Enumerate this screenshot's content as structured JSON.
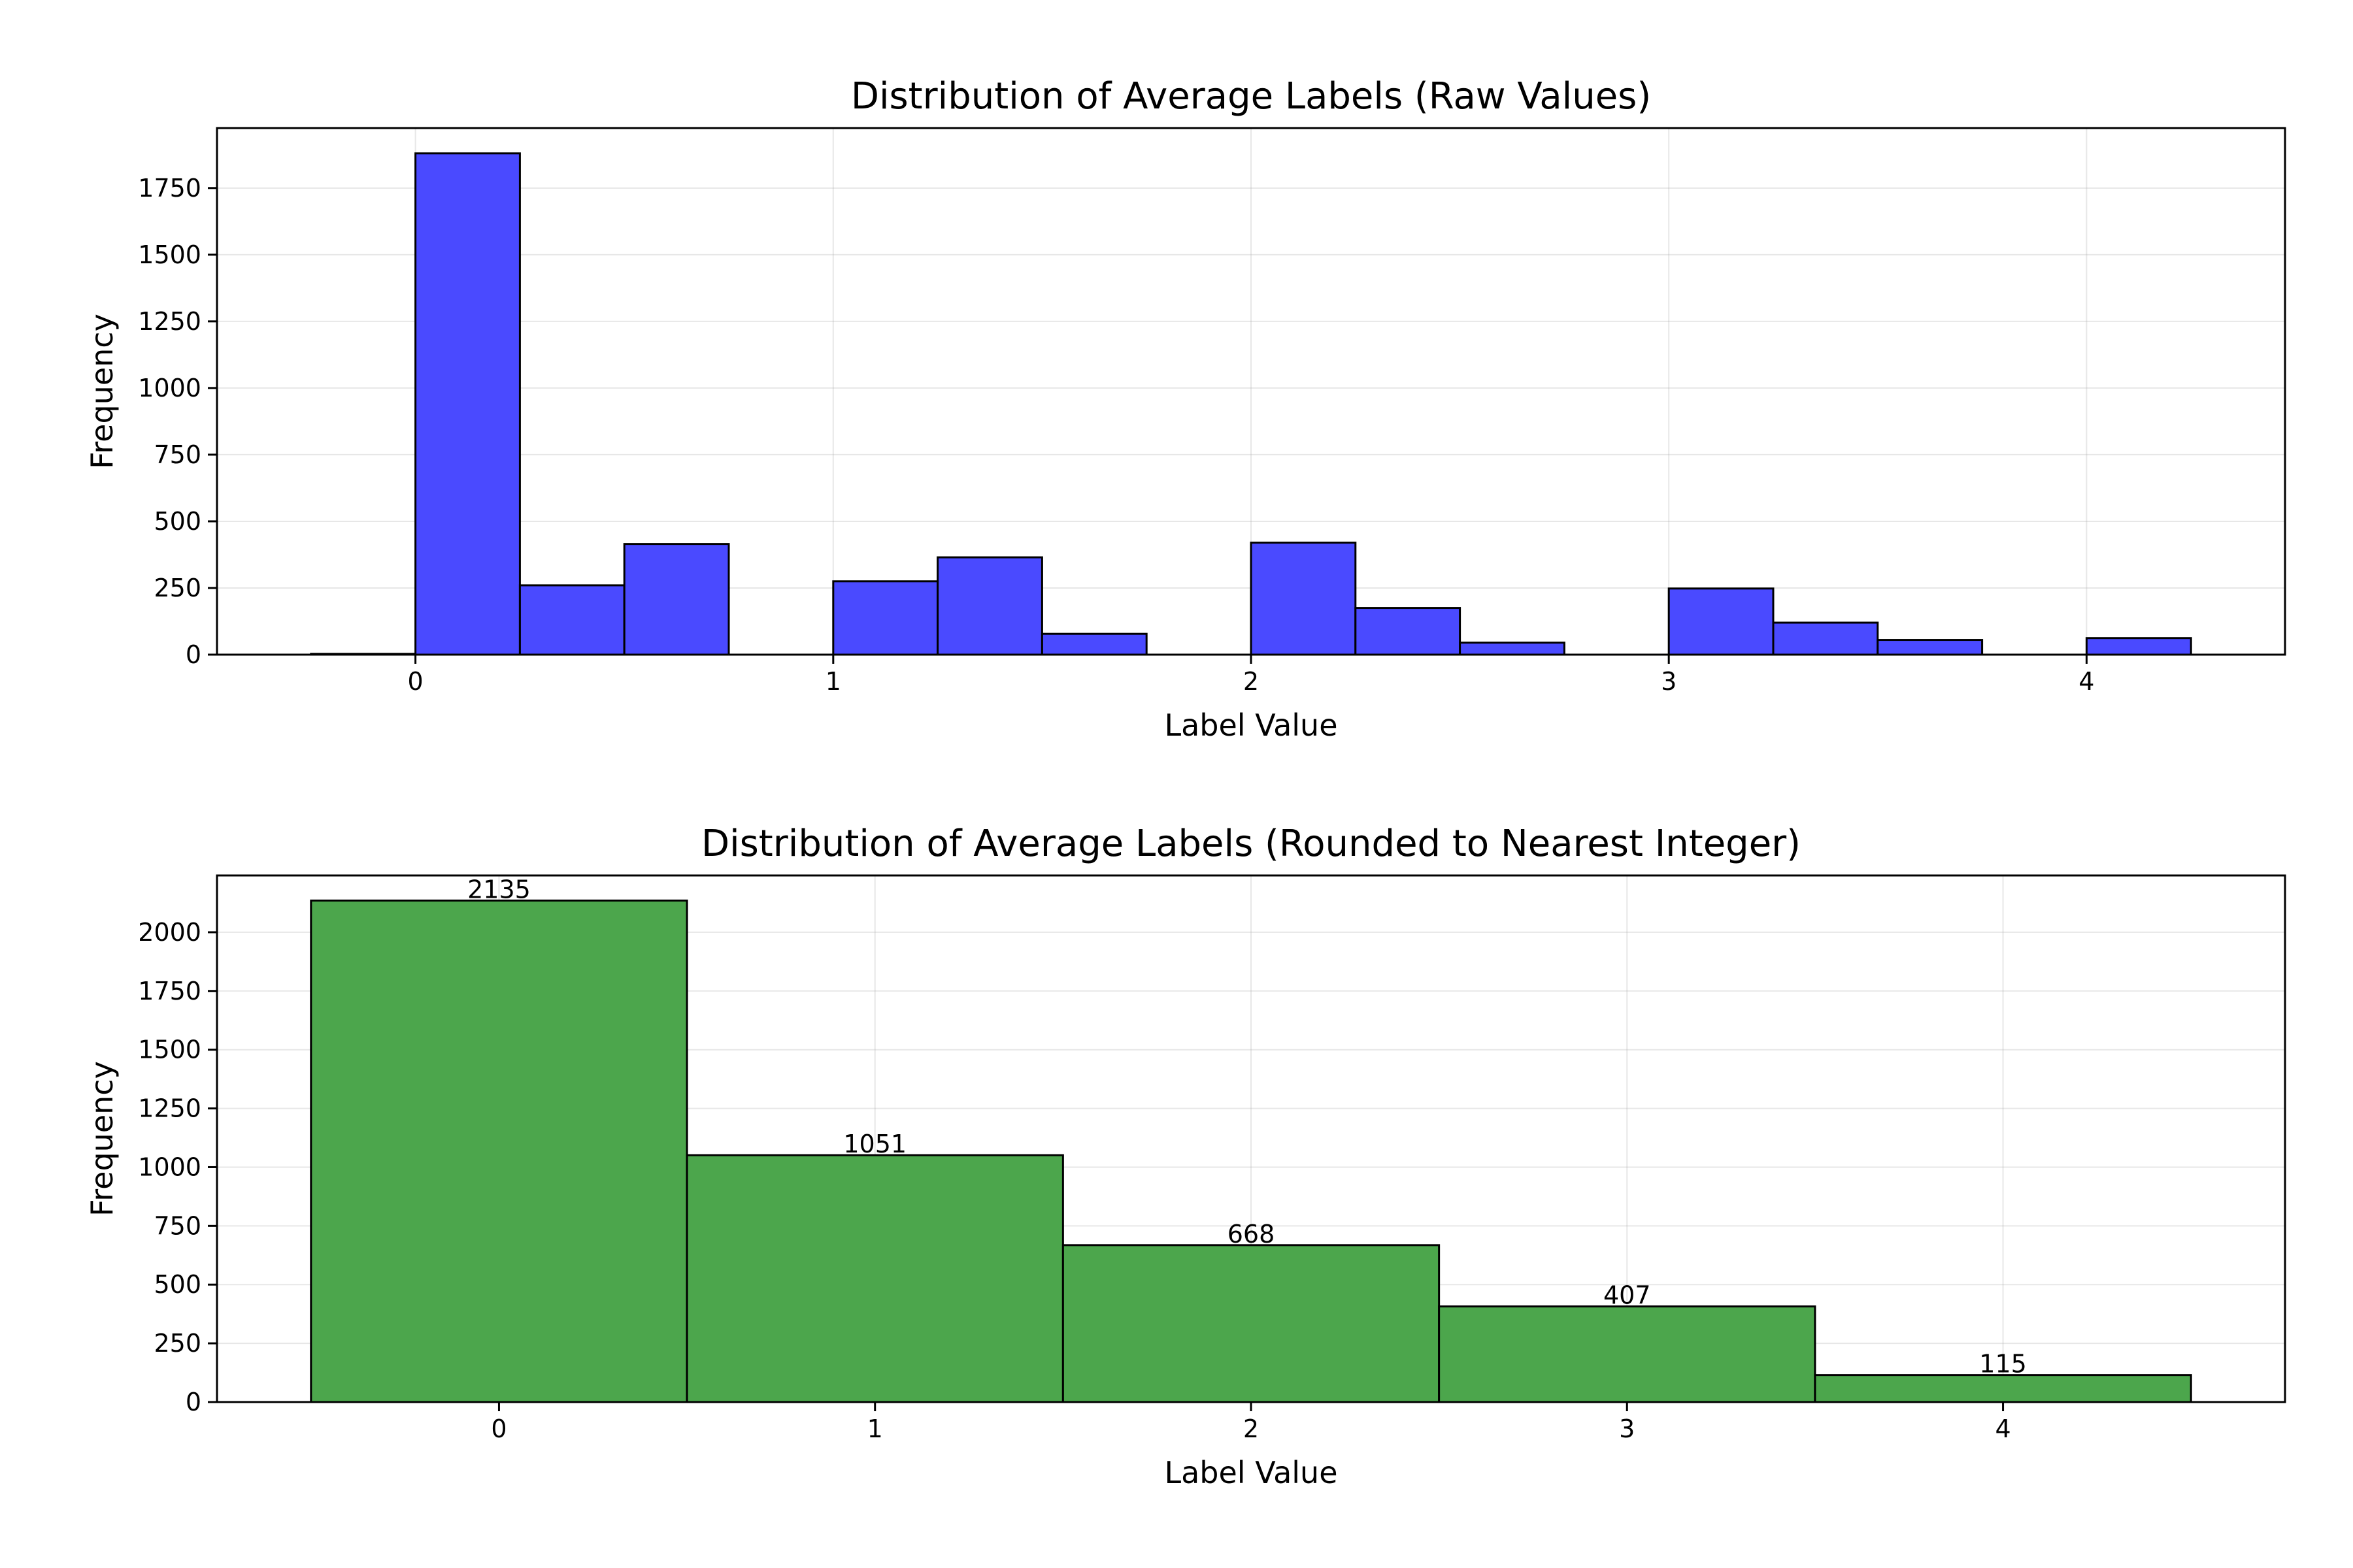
{
  "chart_data": [
    {
      "type": "bar",
      "title": "Distribution of Average Labels (Raw Values)",
      "xlabel": "Label Value",
      "ylabel": "Frequency",
      "xlim": [
        -0.475,
        4.475
      ],
      "ylim": [
        0,
        1975
      ],
      "xticks": [
        0,
        1,
        2,
        3,
        4
      ],
      "yticks": [
        0,
        250,
        500,
        750,
        1000,
        1250,
        1500,
        1750
      ],
      "grid": true,
      "color": "#4a4aff",
      "bins": [
        {
          "x0": -0.25,
          "x1": 0.0,
          "value": 3
        },
        {
          "x0": 0.0,
          "x1": 0.25,
          "value": 1880
        },
        {
          "x0": 0.25,
          "x1": 0.5,
          "value": 260
        },
        {
          "x0": 0.5,
          "x1": 0.75,
          "value": 415
        },
        {
          "x0": 0.75,
          "x1": 1.0,
          "value": 0
        },
        {
          "x0": 1.0,
          "x1": 1.25,
          "value": 275
        },
        {
          "x0": 1.25,
          "x1": 1.5,
          "value": 365
        },
        {
          "x0": 1.5,
          "x1": 1.75,
          "value": 78
        },
        {
          "x0": 1.75,
          "x1": 2.0,
          "value": 0
        },
        {
          "x0": 2.0,
          "x1": 2.25,
          "value": 420
        },
        {
          "x0": 2.25,
          "x1": 2.5,
          "value": 175
        },
        {
          "x0": 2.5,
          "x1": 2.75,
          "value": 45
        },
        {
          "x0": 2.75,
          "x1": 3.0,
          "value": 0
        },
        {
          "x0": 3.0,
          "x1": 3.25,
          "value": 248
        },
        {
          "x0": 3.25,
          "x1": 3.5,
          "value": 120
        },
        {
          "x0": 3.5,
          "x1": 3.75,
          "value": 55
        },
        {
          "x0": 3.75,
          "x1": 4.0,
          "value": 0
        },
        {
          "x0": 4.0,
          "x1": 4.25,
          "value": 62
        }
      ]
    },
    {
      "type": "bar",
      "title": "Distribution of Average Labels (Rounded to Nearest Integer)",
      "xlabel": "Label Value",
      "ylabel": "Frequency",
      "xlim": [
        -0.75,
        4.75
      ],
      "ylim": [
        0,
        2241.75
      ],
      "xticks": [
        0,
        1,
        2,
        3,
        4
      ],
      "yticks": [
        0,
        250,
        500,
        750,
        1000,
        1250,
        1500,
        1750,
        2000
      ],
      "grid": true,
      "color": "#4ca64c",
      "bins": [
        {
          "x0": -0.5,
          "x1": 0.5,
          "value": 2135,
          "label": "2135"
        },
        {
          "x0": 0.5,
          "x1": 1.5,
          "value": 1051,
          "label": "1051"
        },
        {
          "x0": 1.5,
          "x1": 2.5,
          "value": 668,
          "label": "668"
        },
        {
          "x0": 2.5,
          "x1": 3.5,
          "value": 407,
          "label": "407"
        },
        {
          "x0": 3.5,
          "x1": 4.5,
          "value": 115,
          "label": "115"
        }
      ]
    }
  ]
}
